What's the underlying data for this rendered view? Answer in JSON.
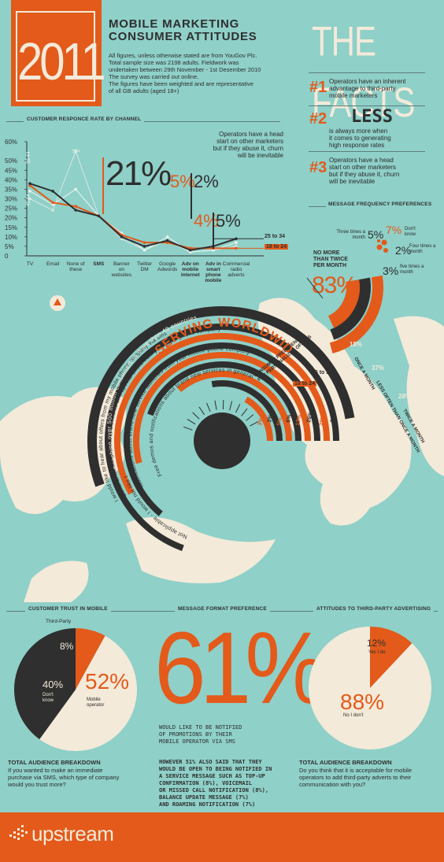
{
  "header": {
    "year": "2011",
    "title_line1": "MOBILE MARKETING",
    "title_line2": "CONSUMER ATTITUDES",
    "intro_lines": [
      "All figures, unless otherwise stated are from YouGov Plc.",
      "Total sample size was 2198 adults. Fieldwork was",
      "undertaken between 29th November - 1st Desember 2010",
      "The survey was carried out online.",
      "The figures have been weighted and are representative",
      "of all GB adults (aged 18+)"
    ]
  },
  "facts": {
    "title": "THE FACTS",
    "items": [
      {
        "num": "#1",
        "text_lines": [
          "Operators have an inherent",
          "advantage to third-party",
          "mobile marketers"
        ]
      },
      {
        "num": "#2",
        "big": "LESS",
        "text_lines": [
          "is always more when",
          "it comes to generating",
          "high response rates"
        ]
      },
      {
        "num": "#3",
        "text_lines": [
          "Operators have a head",
          "start on other marketers",
          "but if they abuse it, churn",
          "will be inevitable"
        ]
      }
    ]
  },
  "response_chart": {
    "label": "CUSTOMER RESPONCE RATE BY CHANNEL",
    "note_lines": [
      "Operators have a head",
      "start on other marketers",
      "but if they abuse it, churn",
      "will be inevitable"
    ],
    "big_stat": "21%",
    "stat_5": "5%",
    "stat_2": "2%",
    "stat_4": "4%",
    "stat_5b": "5%",
    "legend_25_34": "25 to 34",
    "legend_18_24": "18 to 24",
    "peak_labels": [
      "55+",
      "45-54",
      "35-44"
    ],
    "left_label": "35-44"
  },
  "chart_data": {
    "type": "line",
    "categories": [
      "TV",
      "Email",
      "None of these",
      "SMS",
      "Banner on websites",
      "Twitter DM",
      "Google Adwords",
      "Adv on mobile internet",
      "Adv in smart phone mobile apps",
      "Commercial radio adverts"
    ],
    "yticks": [
      "0",
      "5%",
      "10%",
      "15%",
      "20%",
      "25%",
      "30%",
      "35%",
      "40%",
      "45%",
      "50%",
      "60%"
    ],
    "ylim": [
      0,
      60
    ],
    "series": [
      {
        "name": "25 to 34",
        "values": [
          38,
          34,
          24,
          21,
          10,
          5,
          8,
          3,
          5,
          9
        ],
        "color": "#2f2f2f"
      },
      {
        "name": "18 to 24",
        "values": [
          37,
          28,
          26,
          21,
          11,
          7,
          7,
          4,
          4,
          4
        ],
        "color": "#e35a1a"
      },
      {
        "name": "",
        "values": [
          34,
          27,
          35,
          21,
          12,
          3,
          10,
          2,
          3,
          7
        ],
        "color": "#eef4f0"
      },
      {
        "name": "",
        "values": [
          30,
          24,
          55,
          21,
          9,
          3,
          8,
          2,
          3,
          5
        ],
        "color": "#d8e8e2"
      }
    ]
  },
  "frequency": {
    "label": "MESSAGE FREQUENCY PREFERENCES",
    "three_times": "Three times a month",
    "p5": "5%",
    "p7": "7%",
    "dont_know": "Don't know",
    "p2": "2%",
    "four_times": "Four times a month",
    "p3": "3%",
    "five_times": "five times a month",
    "no_more_lines": [
      "NO MORE",
      "THAN TWICE",
      "PER MONTH"
    ],
    "p83": "83%",
    "arcs": [
      {
        "pct": "18%",
        "label": "ONCE A MONTH"
      },
      {
        "pct": "37%",
        "label": "LESS OFTEN THAN ONCE A MONTH"
      },
      {
        "pct": "28%",
        "label": "TWICE A MONTH"
      }
    ]
  },
  "worldwide": {
    "outer_text": "Reaching over 500 million consumers in more than 40 countries",
    "title": "SERVING WORLDWIDE",
    "arc_texts": [
      "I would like to hear about offers from my mobile phone company via sms",
      "General messages about discounts and special offers from your obile phone company",
      "Notifications about brand new service launches from your mobile phone company",
      "Free demos and notifications about brand new services in general",
      "Not applicable - I would not like to hear about offers"
    ],
    "pref_lines": [
      "CONSUMER PREFERENCE",
      "FOR PERSONALIZED OFFERS"
    ],
    "age_18_24": "18 to 24",
    "age_25_34": "25 to 34",
    "bars": [
      "3%",
      "3%",
      "5%",
      "6%",
      "12%",
      "26%",
      "28%",
      "34%"
    ]
  },
  "trust": {
    "label": "CUSTOMER TRUST IN MOBILE",
    "third_party": "Third-Party",
    "p8": "8%",
    "p40": "40%",
    "dont_know": "Don't know",
    "p52": "52%",
    "mobile_operator": "Mobile operator",
    "footer_title": "TOTAL AUDIENCE BREAKDOWN",
    "footer_lines": [
      "If you wanted to make an immediate",
      "purchase via SMS, which type of company",
      "would you trust more?"
    ]
  },
  "format": {
    "label": "MESSAGE FORMAT PREFERENCE",
    "big": "61%",
    "caption_lines": [
      "WOULD LIKE TO BE NOTIFIED",
      "OF PROMOTIONS BY THEIR",
      "MOBILE OPERATOR VIA SMS"
    ],
    "footer_lines": [
      "HOWEVER 51% ALSO SAID THAT THEY",
      "WOULD BE OPEN TO BEING NOTIFIED IN",
      "A SERVICE MESSAGE SUCH AS TOP-UP",
      "CONFIRMATION (8%), VOICEMAIL",
      "OR MISSED CALL NOTIFICATION (8%),",
      "BALANCE UPDATE MESSAGE (7%)",
      "AND ROAMING NOTIFICATION (7%)"
    ]
  },
  "third_party": {
    "label": "ATTITUDES TO THIRD-PARTY ADVERTISING",
    "p12": "12%",
    "yes": "Yes I do",
    "p88": "88%",
    "no": "No I don't",
    "footer_title": "TOTAL AUDIENCE BREAKDOWN",
    "footer_lines": [
      "Do you think that it is acceptable for mobile",
      "operators to add third-party adverts to their",
      "communication with you?"
    ]
  },
  "footer": {
    "brand": "upstream"
  },
  "colors": {
    "bg": "#8fd0c8",
    "orange": "#e35a1a",
    "dark": "#2f2f2f",
    "cream": "#f3ead9"
  }
}
